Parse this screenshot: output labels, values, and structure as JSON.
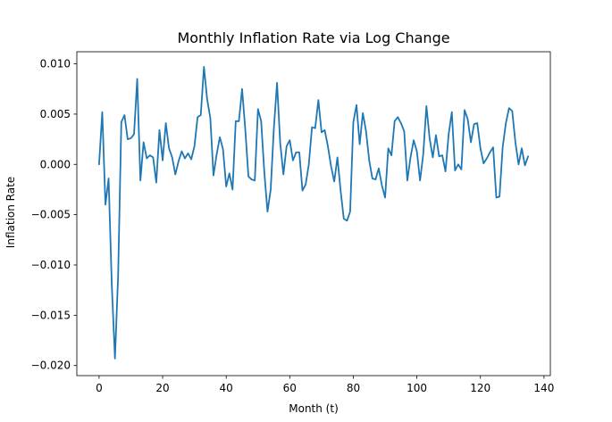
{
  "chart_data": {
    "type": "line",
    "title": "Monthly Inflation Rate via Log Change",
    "xlabel": "Month (t)",
    "ylabel": "Inflation Rate",
    "xlim": [
      -7,
      142
    ],
    "ylim": [
      -0.021,
      0.0112
    ],
    "x_ticks": [
      0,
      20,
      40,
      60,
      80,
      100,
      120,
      140
    ],
    "x_tick_labels": [
      "0",
      "20",
      "40",
      "60",
      "80",
      "100",
      "120",
      "140"
    ],
    "y_ticks": [
      -0.02,
      -0.015,
      -0.01,
      -0.005,
      0.0,
      0.005,
      0.01
    ],
    "y_tick_labels": [
      "−0.020",
      "−0.015",
      "−0.010",
      "−0.005",
      "0.000",
      "0.005",
      "0.010"
    ],
    "grid": false,
    "legend": "none",
    "series": [
      {
        "color": "#1f77b4",
        "x": [
          0,
          1,
          2,
          3,
          4,
          5,
          6,
          7,
          8,
          9,
          10,
          11,
          12,
          13,
          14,
          15,
          16,
          17,
          18,
          19,
          20,
          21,
          22,
          23,
          24,
          25,
          26,
          27,
          28,
          29,
          30,
          31,
          32,
          33,
          34,
          35,
          36,
          37,
          38,
          39,
          40,
          41,
          42,
          43,
          44,
          45,
          46,
          47,
          48,
          49,
          50,
          51,
          52,
          53,
          54,
          55,
          56,
          57,
          58,
          59,
          60,
          61,
          62,
          63,
          64,
          65,
          66,
          67,
          68,
          69,
          70,
          71,
          72,
          73,
          74,
          75,
          76,
          77,
          78,
          79,
          80,
          81,
          82,
          83,
          84,
          85,
          86,
          87,
          88,
          89,
          90,
          91,
          92,
          93,
          94,
          95,
          96,
          97,
          98,
          99,
          100,
          101,
          102,
          103,
          104,
          105,
          106,
          107,
          108,
          109,
          110,
          111,
          112,
          113,
          114,
          115,
          116,
          117,
          118,
          119,
          120,
          121,
          122,
          123,
          124,
          125,
          126,
          127,
          128,
          129,
          130,
          131,
          132,
          133,
          134,
          135
        ],
        "values": [
          0.0,
          0.0052,
          -0.004,
          -0.0014,
          -0.012,
          -0.0193,
          -0.011,
          0.0042,
          0.0049,
          0.0025,
          0.0026,
          0.003,
          0.0085,
          -0.0016,
          0.0022,
          0.0006,
          0.0009,
          0.0007,
          -0.0018,
          0.0034,
          0.0004,
          0.0041,
          0.0016,
          0.0007,
          -0.001,
          0.0003,
          0.0013,
          0.0006,
          0.0011,
          0.0005,
          0.0018,
          0.0047,
          0.0049,
          0.0097,
          0.0065,
          0.0046,
          -0.0011,
          0.001,
          0.0027,
          0.0015,
          -0.0022,
          -0.0009,
          -0.0025,
          0.0043,
          0.0043,
          0.0075,
          0.0035,
          -0.0012,
          -0.0015,
          -0.0016,
          0.0055,
          0.0043,
          -0.0008,
          -0.0047,
          -0.0025,
          0.0036,
          0.0081,
          0.0021,
          -0.001,
          0.0018,
          0.0024,
          0.0004,
          0.0012,
          0.0012,
          -0.0026,
          -0.002,
          0.0,
          0.0037,
          0.0036,
          0.0064,
          0.0032,
          0.0034,
          0.0018,
          -0.0002,
          -0.0017,
          0.0007,
          -0.0026,
          -0.0054,
          -0.0056,
          -0.0047,
          0.0042,
          0.0059,
          0.002,
          0.0051,
          0.0033,
          0.0004,
          -0.0014,
          -0.0015,
          -0.0004,
          -0.0021,
          -0.0033,
          0.0016,
          0.0009,
          0.0043,
          0.0047,
          0.0041,
          0.0033,
          -0.0016,
          0.0007,
          0.0024,
          0.0013,
          -0.0016,
          0.001,
          0.0058,
          0.0026,
          0.0007,
          0.0029,
          0.0008,
          0.0009,
          -0.0007,
          0.003,
          0.0052,
          -0.0006,
          0.0,
          -0.0005,
          0.0054,
          0.0045,
          0.0022,
          0.004,
          0.0041,
          0.0016,
          0.0001,
          0.0006,
          0.0012,
          0.0017,
          -0.0033,
          -0.0032,
          0.0017,
          0.0041,
          0.0056,
          0.0053,
          0.0022,
          0.0,
          0.0016,
          -0.0001,
          0.0008
        ]
      }
    ]
  }
}
